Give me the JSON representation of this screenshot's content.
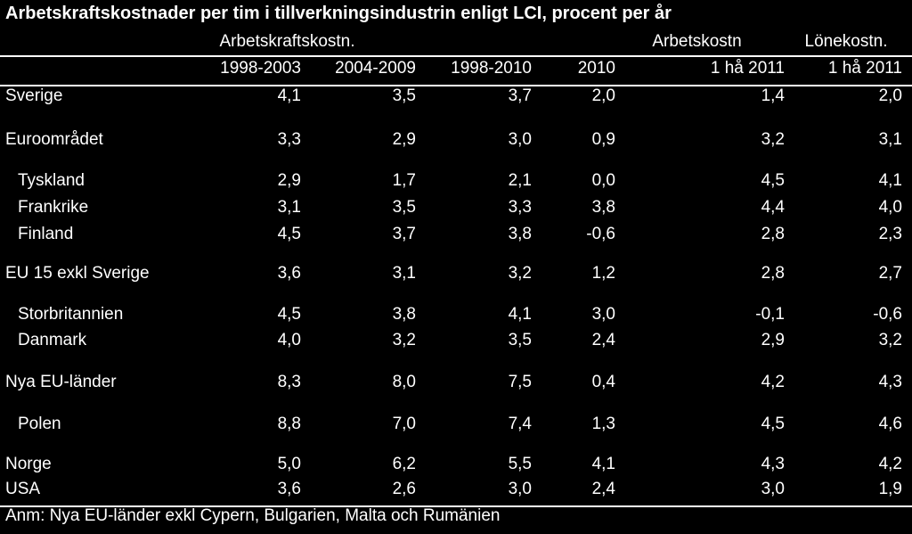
{
  "title": "Arbetskraftskostnader per tim i tillverkningsindustrin enligt LCI, procent per år",
  "table": {
    "group_headers": [
      "Arbetskraftskostn.",
      "Arbetskostn",
      "Lönekostn."
    ],
    "columns": [
      "1998-2003",
      "2004-2009",
      "1998-2010",
      "2010",
      "1 hå 2011",
      "1 hå 2011"
    ],
    "rows": [
      [
        "Sverige",
        "4,1",
        "3,5",
        "3,7",
        "2,0",
        "1,4",
        "2,0"
      ],
      [
        "Euroområdet",
        "3,3",
        "2,9",
        "3,0",
        "0,9",
        "3,2",
        "3,1"
      ],
      [
        "Tyskland",
        "2,9",
        "1,7",
        "2,1",
        "0,0",
        "4,5",
        "4,1"
      ],
      [
        "Frankrike",
        "3,1",
        "3,5",
        "3,3",
        "3,8",
        "4,4",
        "4,0"
      ],
      [
        "Finland",
        "4,5",
        "3,7",
        "3,8",
        "-0,6",
        "2,8",
        "2,3"
      ],
      [
        "EU 15 exkl Sverige",
        "3,6",
        "3,1",
        "3,2",
        "1,2",
        "2,8",
        "2,7"
      ],
      [
        "Storbritannien",
        "4,5",
        "3,8",
        "4,1",
        "3,0",
        "-0,1",
        "-0,6"
      ],
      [
        "Danmark",
        "4,0",
        "3,2",
        "3,5",
        "2,4",
        "2,9",
        "3,2"
      ],
      [
        "Nya EU-länder",
        "8,3",
        "8,0",
        "7,5",
        "0,4",
        "4,2",
        "4,3"
      ],
      [
        "Polen",
        "8,8",
        "7,0",
        "7,4",
        "1,3",
        "4,5",
        "4,6"
      ],
      [
        "Norge",
        "5,0",
        "6,2",
        "5,5",
        "4,1",
        "4,3",
        "4,2"
      ],
      [
        "USA",
        "3,6",
        "2,6",
        "3,0",
        "2,4",
        "3,0",
        "1,9"
      ]
    ]
  },
  "footnote": "Anm: Nya EU-länder exkl Cypern, Bulgarien, Malta och Rumänien"
}
